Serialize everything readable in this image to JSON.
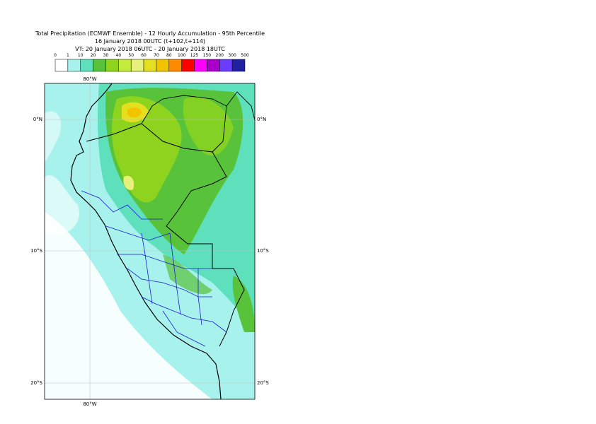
{
  "header": {
    "lines": [
      "Total Precipitation (ECMWF Ensemble) - 12 Hourly Accumulation - 95th Percentile",
      "16 January 2018 00UTC (t+102,t+114)",
      "VT: 20 January 2018 06UTC - 20 January 2018 18UTC"
    ]
  },
  "legend": {
    "labels": [
      "0",
      "1",
      "10",
      "20",
      "30",
      "40",
      "50",
      "60",
      "70",
      "80",
      "100",
      "125",
      "150",
      "200",
      "300",
      "500"
    ],
    "colors": [
      "#ffffff",
      "#a8f2ee",
      "#5ee0bc",
      "#58c23a",
      "#8ed41e",
      "#c4ec3c",
      "#e6f07a",
      "#e4e020",
      "#f2c400",
      "#ff8a00",
      "#ff0000",
      "#ff00ff",
      "#a800c8",
      "#6a3cff",
      "#2020a0",
      "#0e0e56"
    ]
  },
  "map": {
    "lon_top": "80°W",
    "lon_bottom": "80°W",
    "lat_left": [
      "0°N",
      "10°S",
      "20°S"
    ],
    "lat_right": [
      "0°N",
      "10°S",
      "20°S"
    ]
  }
}
